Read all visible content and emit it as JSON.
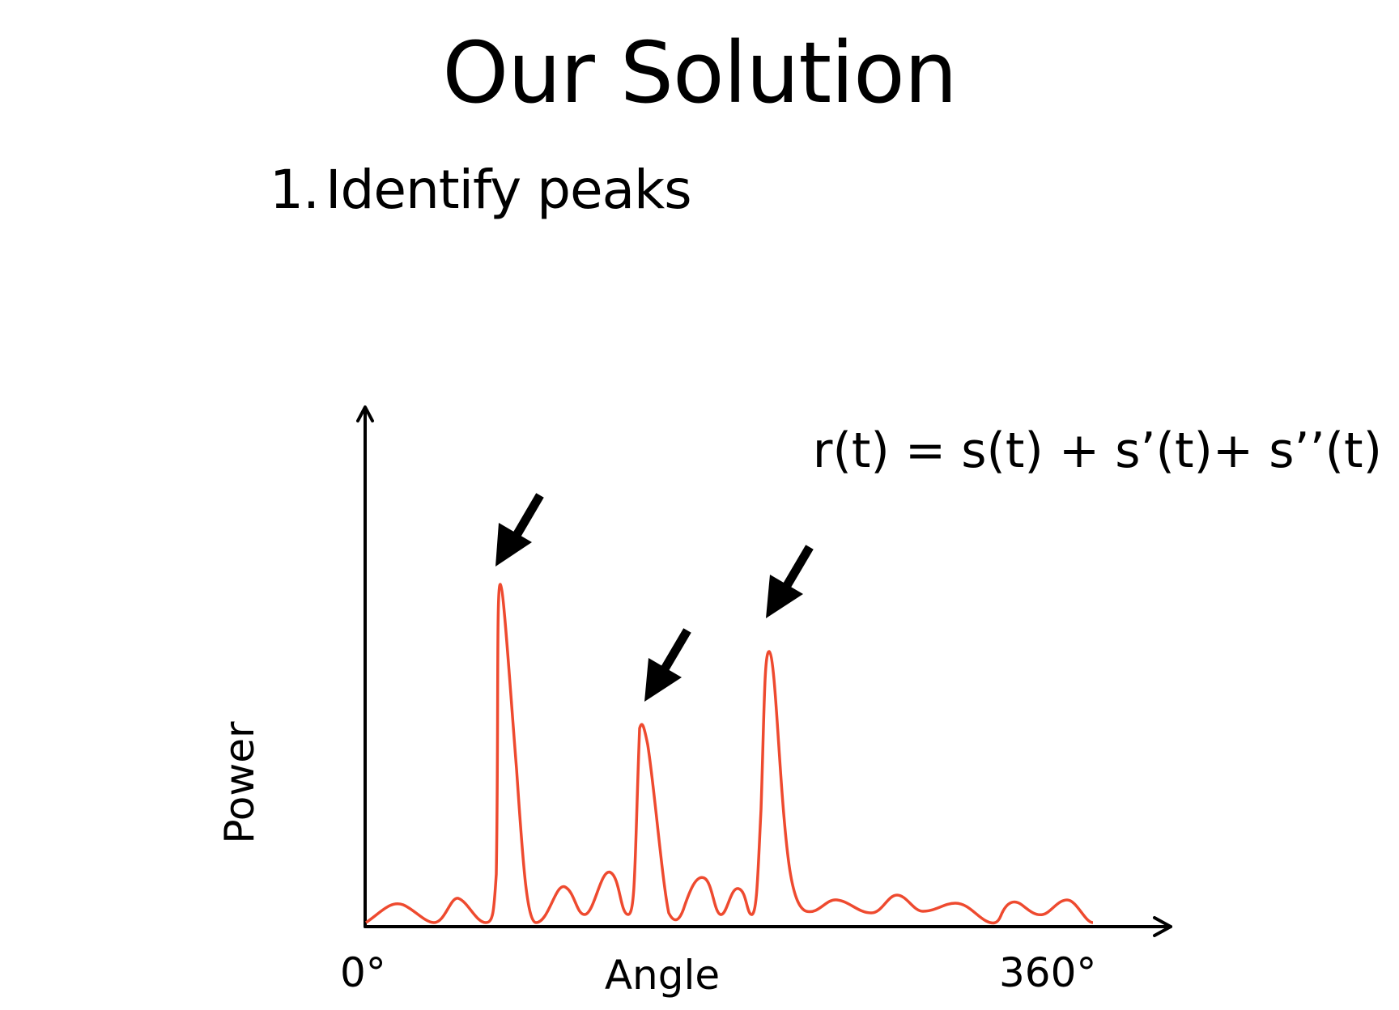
{
  "slide": {
    "title": "Our Solution",
    "bullet_number": "1.",
    "bullet_text": "Identify peaks"
  },
  "diagram": {
    "equation": "r(t) = s(t) + s’(t)+ s’’(t)",
    "y_axis_label": "Power",
    "x_axis_label": "Angle",
    "x_tick_start": "0°",
    "x_tick_end": "360°",
    "curve_color": "#ee4a2f",
    "peak_count": 3
  }
}
